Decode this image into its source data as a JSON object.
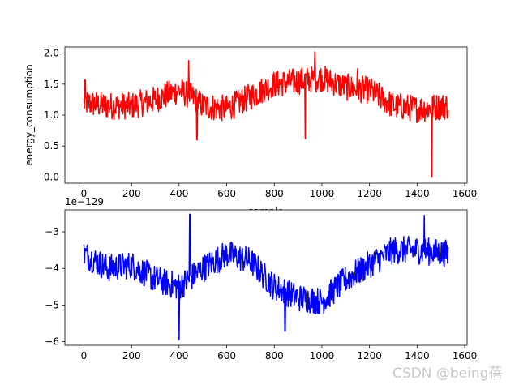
{
  "chart_data": [
    {
      "type": "line",
      "xlabel": "sample",
      "ylabel": "energy_consumption",
      "xlim": [
        -80,
        1610
      ],
      "ylim": [
        -0.1,
        2.1
      ],
      "xticks": [
        0,
        200,
        400,
        600,
        800,
        1000,
        1200,
        1400,
        1600
      ],
      "yticks": [
        0.0,
        0.5,
        1.0,
        1.5,
        2.0
      ],
      "xtick_labels": [
        "0",
        "200",
        "400",
        "600",
        "800",
        "1000",
        "1200",
        "1400",
        "1600"
      ],
      "ytick_labels": [
        "0.0",
        "0.5",
        "1.0",
        "1.5",
        "2.0"
      ],
      "offset_text": "",
      "grid": false,
      "series": [
        {
          "color": "#ff0000",
          "x_start": 0,
          "x_step": 1,
          "x_end": 1531,
          "approx_profile_x": [
            0,
            100,
            200,
            300,
            400,
            450,
            500,
            600,
            700,
            800,
            900,
            1000,
            1100,
            1200,
            1300,
            1400,
            1530
          ],
          "approx_profile_y": [
            1.2,
            1.15,
            1.15,
            1.25,
            1.4,
            1.3,
            1.15,
            1.1,
            1.3,
            1.5,
            1.55,
            1.6,
            1.45,
            1.4,
            1.15,
            1.1,
            1.15
          ],
          "spikes": [
            {
              "x": 5,
              "y": 1.57
            },
            {
              "x": 440,
              "y": 1.88
            },
            {
              "x": 475,
              "y": 0.6
            },
            {
              "x": 930,
              "y": 0.62
            },
            {
              "x": 970,
              "y": 2.02
            },
            {
              "x": 1150,
              "y": 1.75
            },
            {
              "x": 1462,
              "y": 0.0
            }
          ]
        }
      ]
    },
    {
      "type": "line",
      "xlabel": "",
      "ylabel": "",
      "xlim": [
        -80,
        1610
      ],
      "ylim": [
        -6.1,
        -2.4
      ],
      "xticks": [
        0,
        200,
        400,
        600,
        800,
        1000,
        1200,
        1400,
        1600
      ],
      "yticks": [
        -6,
        -5,
        -4,
        -3
      ],
      "xtick_labels": [
        "0",
        "200",
        "400",
        "600",
        "800",
        "1000",
        "1200",
        "1400",
        "1600"
      ],
      "ytick_labels": [
        "−6",
        "−5",
        "−4",
        "−3"
      ],
      "offset_text": "1e−129",
      "grid": false,
      "series": [
        {
          "color": "#0000ff",
          "x_start": 0,
          "x_step": 1,
          "x_end": 1531,
          "approx_profile_x": [
            0,
            100,
            200,
            300,
            400,
            500,
            600,
            700,
            800,
            900,
            1000,
            1100,
            1200,
            1300,
            1400,
            1530
          ],
          "approx_profile_y": [
            -3.6,
            -4.0,
            -3.9,
            -4.3,
            -4.5,
            -4.0,
            -3.6,
            -3.8,
            -4.5,
            -4.8,
            -4.9,
            -4.3,
            -3.9,
            -3.5,
            -3.5,
            -3.6
          ],
          "spikes": [
            {
              "x": 400,
              "y": -5.95
            },
            {
              "x": 445,
              "y": -2.52
            },
            {
              "x": 1430,
              "y": -2.55
            },
            {
              "x": 845,
              "y": -5.72
            }
          ]
        }
      ]
    }
  ],
  "watermark": "CSDN @being蓓"
}
